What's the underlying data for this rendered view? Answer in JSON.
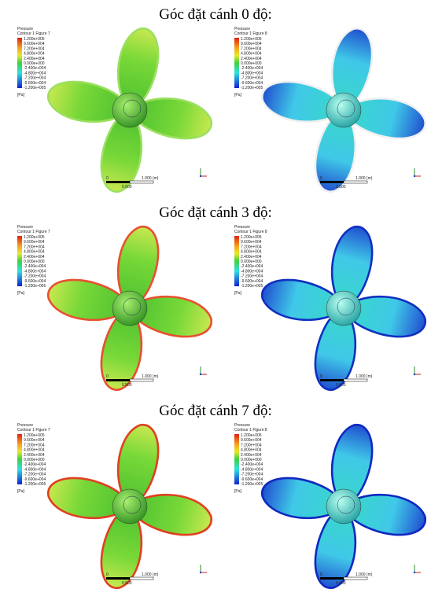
{
  "sections": [
    {
      "title": "Góc đặt cánh 0 độ:",
      "panels": [
        {
          "legend_title": "Pressure",
          "legend_subtitle": "Contour 1 Figure 7",
          "legend_labels": [
            "1.200e+005",
            "9.600e+004",
            "7.200e+004",
            "4.800e+004",
            "2.400e+004",
            "0.000e+000",
            "-2.400e+004",
            "-4.800e+004",
            "-7.200e+004",
            "-9.600e+004",
            "-1.200e+005"
          ],
          "legend_unit": "[Pa]",
          "scale_labels": [
            "0",
            "1.000 (m)",
            "0.500"
          ]
        },
        {
          "legend_title": "Pressure",
          "legend_subtitle": "Contour 1 Figure 8",
          "legend_labels": [
            "1.200e+005",
            "9.600e+004",
            "7.200e+004",
            "4.800e+004",
            "2.400e+004",
            "0.000e+000",
            "-2.400e+004",
            "-4.800e+004",
            "-7.200e+004",
            "-9.600e+004",
            "-1.200e+005"
          ],
          "legend_unit": "[Pa]",
          "scale_labels": [
            "0",
            "1.000 (m)",
            "0.500"
          ]
        }
      ]
    },
    {
      "title": "Góc đặt cánh 3 độ:",
      "panels": [
        {
          "legend_title": "Pressure",
          "legend_subtitle": "Contour 1 Figure 7",
          "legend_labels": [
            "1.200e+005",
            "9.600e+004",
            "7.200e+004",
            "4.800e+004",
            "2.400e+004",
            "0.000e+000",
            "-2.400e+004",
            "-4.800e+004",
            "-7.200e+004",
            "-9.600e+004",
            "-1.200e+005"
          ],
          "legend_unit": "[Pa]",
          "scale_labels": [
            "0",
            "1.000 (m)",
            "0.500"
          ]
        },
        {
          "legend_title": "Pressure",
          "legend_subtitle": "Contour 1 Figure 8",
          "legend_labels": [
            "1.200e+005",
            "9.600e+004",
            "7.200e+004",
            "4.800e+004",
            "2.400e+004",
            "0.000e+000",
            "-2.400e+004",
            "-4.800e+004",
            "-7.200e+004",
            "-9.600e+004",
            "-1.200e+005"
          ],
          "legend_unit": "[Pa]",
          "scale_labels": [
            "0",
            "1.000 (m)",
            "0.500"
          ]
        }
      ]
    },
    {
      "title": "Góc đặt cánh 7 độ:",
      "panels": [
        {
          "legend_title": "Pressure",
          "legend_subtitle": "Contour 1 Figure 7",
          "legend_labels": [
            "1.200e+005",
            "9.600e+004",
            "7.200e+004",
            "4.800e+004",
            "2.400e+004",
            "0.000e+000",
            "-2.400e+004",
            "-4.800e+004",
            "-7.200e+004",
            "-9.600e+004",
            "-1.200e+005"
          ],
          "legend_unit": "[Pa]",
          "scale_labels": [
            "0",
            "1.000 (m)",
            "0.500"
          ]
        },
        {
          "legend_title": "Pressure",
          "legend_subtitle": "Contour 1 Figure 8",
          "legend_labels": [
            "1.200e+005",
            "9.600e+004",
            "7.200e+004",
            "4.800e+004",
            "2.400e+004",
            "0.000e+000",
            "-2.400e+004",
            "-4.800e+004",
            "-7.200e+004",
            "-9.600e+004",
            "-1.200e+005"
          ],
          "legend_unit": "[Pa]",
          "scale_labels": [
            "0",
            "1.000 (m)",
            "0.500"
          ]
        }
      ]
    }
  ]
}
